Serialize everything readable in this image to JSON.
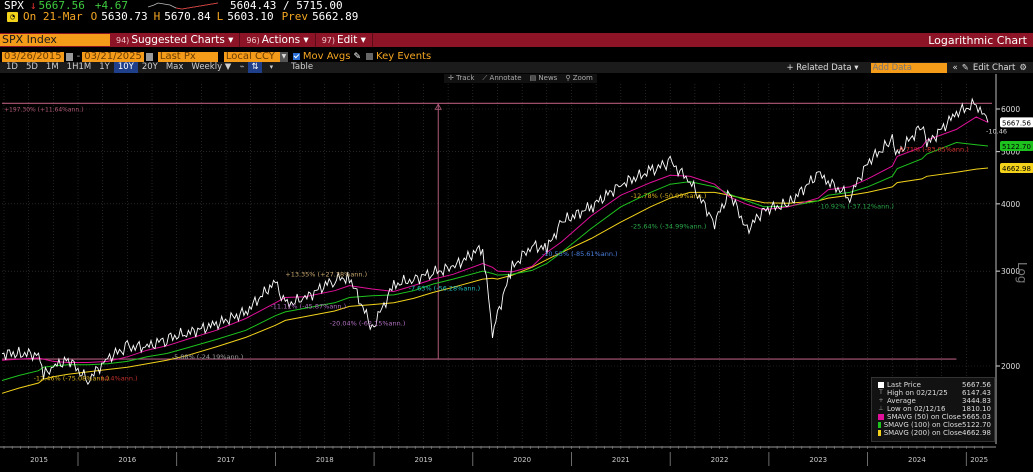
{
  "quote": {
    "ticker": "SPX",
    "direction_arrow": "↓",
    "last": "5667.56",
    "change": "+4.67",
    "range_low": "5604.43",
    "range_sep": " / ",
    "range_high": "5715.00",
    "date_label": "On 21-Mar",
    "open_label": "O",
    "open": "5630.73",
    "high_label": "H",
    "high": "5670.84",
    "low_label": "L",
    "low": "5603.10",
    "prev_label": "Prev",
    "prev": "5662.89",
    "gauge_icon": "gauge-icon"
  },
  "menubar": {
    "security": "SPX Index",
    "items": [
      {
        "num": "94)",
        "label": "Suggested Charts ▾"
      },
      {
        "num": "96)",
        "label": "Actions ▾"
      },
      {
        "num": "97)",
        "label": "Edit ▾"
      }
    ],
    "chart_type": "Logarithmic Chart"
  },
  "settings": {
    "start_date": "03/26/2015",
    "end_date": "03/21/2025",
    "date_sep": "-",
    "field": "Last Px",
    "currency": "Local CCY",
    "mov_avgs_label": "Mov Avgs",
    "mov_avgs_checked": true,
    "key_events_label": "Key Events",
    "key_events_checked": false
  },
  "periods": {
    "items": [
      "1D",
      "5D",
      "1M",
      "1H1M",
      "1Y",
      "10Y",
      "20Y",
      "Max"
    ],
    "active": "10Y",
    "frequency": "Weekly ▼",
    "table_label": "Table",
    "related_data": "+ Related Data ▾",
    "add_data_placeholder": "Add Data",
    "collapse": "«",
    "edit_chart": "Edit Chart",
    "settings_icon": "gear-icon"
  },
  "chart_tools": [
    "✛ Track",
    "⟋ Annotate",
    "▤ News",
    "⚲ Zoom"
  ],
  "axis_side_label": "Log",
  "chart_data": {
    "type": "line",
    "title": "SPX Index — Logarithmic Chart",
    "scale": "log",
    "xlabel": "",
    "ylabel": "Log",
    "ylim": [
      1750,
      6600
    ],
    "x_ticks": [
      "2015",
      "2016",
      "2017",
      "2018",
      "2019",
      "2020",
      "2021",
      "2022",
      "2023",
      "2024",
      "2025"
    ],
    "y_ticks": [
      2000,
      3000,
      4000,
      5000,
      6000
    ],
    "grid": true,
    "legend_position": "bottom-right",
    "x": [
      2015.23,
      2015.4,
      2015.6,
      2015.65,
      2015.75,
      2015.9,
      2016.1,
      2016.3,
      2016.5,
      2016.7,
      2016.9,
      2017.1,
      2017.4,
      2017.7,
      2018.0,
      2018.1,
      2018.3,
      2018.6,
      2018.75,
      2018.98,
      2019.2,
      2019.4,
      2019.6,
      2019.8,
      2020.1,
      2020.2,
      2020.25,
      2020.4,
      2020.6,
      2020.75,
      2020.9,
      2021.2,
      2021.5,
      2021.8,
      2022.0,
      2022.2,
      2022.45,
      2022.6,
      2022.78,
      2022.95,
      2023.2,
      2023.5,
      2023.6,
      2023.82,
      2024.0,
      2024.25,
      2024.3,
      2024.55,
      2024.6,
      2024.9,
      2025.1,
      2025.22
    ],
    "series": [
      {
        "name": "Last Price",
        "color": "#ffffff",
        "values": [
          2108,
          2110,
          2100,
          1920,
          1990,
          2060,
          1880,
          2070,
          2170,
          2170,
          2250,
          2300,
          2390,
          2520,
          2870,
          2600,
          2670,
          2900,
          2920,
          2350,
          2830,
          2900,
          2980,
          3050,
          3330,
          2300,
          2500,
          3050,
          3350,
          3300,
          3700,
          3950,
          4350,
          4600,
          4790,
          4400,
          3700,
          4200,
          3580,
          3900,
          4000,
          4550,
          4400,
          4120,
          4780,
          5250,
          4950,
          5600,
          5150,
          5900,
          6140,
          5667.56
        ]
      },
      {
        "name": "SMAVG (50) on Close",
        "color": "#e0109a",
        "values": [
          2050,
          2060,
          2070,
          2060,
          2040,
          2030,
          2030,
          2040,
          2080,
          2140,
          2180,
          2240,
          2330,
          2450,
          2620,
          2680,
          2690,
          2760,
          2820,
          2780,
          2750,
          2820,
          2900,
          2960,
          3100,
          3050,
          3000,
          2990,
          3060,
          3250,
          3400,
          3800,
          4150,
          4380,
          4520,
          4500,
          4350,
          4120,
          3990,
          3900,
          3950,
          4100,
          4250,
          4300,
          4450,
          4700,
          4900,
          5100,
          5250,
          5500,
          5800,
          5665.03
        ]
      },
      {
        "name": "SMAVG (100) on Close",
        "color": "#1ec21e",
        "values": [
          1880,
          1920,
          1960,
          1990,
          2000,
          2010,
          2010,
          2020,
          2040,
          2080,
          2110,
          2160,
          2240,
          2330,
          2480,
          2520,
          2560,
          2620,
          2680,
          2700,
          2710,
          2760,
          2840,
          2900,
          3000,
          2970,
          2950,
          2960,
          3010,
          3100,
          3250,
          3600,
          3950,
          4200,
          4350,
          4400,
          4300,
          4170,
          4050,
          3950,
          3960,
          4050,
          4150,
          4200,
          4300,
          4500,
          4650,
          4850,
          4950,
          5200,
          5150,
          5122.7
        ]
      },
      {
        "name": "SMAVG (200) on Close",
        "color": "#f2d21b",
        "values": [
          1780,
          1820,
          1860,
          1890,
          1910,
          1930,
          1950,
          1970,
          1990,
          2020,
          2050,
          2090,
          2170,
          2260,
          2380,
          2430,
          2470,
          2530,
          2580,
          2600,
          2620,
          2670,
          2740,
          2800,
          2900,
          2910,
          2900,
          2950,
          3050,
          3150,
          3250,
          3450,
          3700,
          3950,
          4100,
          4200,
          4200,
          4150,
          4080,
          4020,
          4010,
          4050,
          4100,
          4150,
          4200,
          4300,
          4380,
          4450,
          4500,
          4580,
          4640,
          4662.98
        ]
      }
    ],
    "reference_lines": [
      {
        "label": "+197.30% (+11.64%ann.)",
        "value": 6147.43,
        "color": "#b05a7a"
      },
      {
        "label": "",
        "value": 2060,
        "color": "#b05a7a"
      }
    ],
    "annotations": [
      {
        "text": "-12.46% (-75.08%ann.)",
        "color": "#d8b020",
        "x": 2015.55,
        "y": 1880
      },
      {
        "text": "-14.4%ann.)",
        "color": "#c0302a",
        "x": 2016.2,
        "y": 1880
      },
      {
        "text": "-5.88% (-24.19%ann.)",
        "color": "#a0a0a0",
        "x": 2016.95,
        "y": 2060
      },
      {
        "text": "+13.35% (+27.38%ann.)",
        "color": "#c8a870",
        "x": 2018.1,
        "y": 2930
      },
      {
        "text": "-11.11% (-45.87%ann.)",
        "color": "#b070c0",
        "x": 2017.95,
        "y": 2560
      },
      {
        "text": "-20.04% (-62.15%ann.)",
        "color": "#b070c0",
        "x": 2018.55,
        "y": 2380
      },
      {
        "text": "-7.63% (-56.28%ann.)",
        "color": "#20c0c0",
        "x": 2019.35,
        "y": 2760
      },
      {
        "text": "-10.55% (-85.61%ann.)",
        "color": "#4a80e0",
        "x": 2020.7,
        "y": 3200
      },
      {
        "text": "-12.78% (-50.99%ann.)",
        "color": "#d8b020",
        "x": 2021.6,
        "y": 4100
      },
      {
        "text": "-25.64% (-34.99%ann.)",
        "color": "#2aa84a",
        "x": 2021.6,
        "y": 3600
      },
      {
        "text": "-10.92% (-37.12%ann.)",
        "color": "#2aa84a",
        "x": 2023.5,
        "y": 3920
      },
      {
        "text": "-9.71% (-83.05%ann.)",
        "color": "#e03030",
        "x": 2024.3,
        "y": 5000
      },
      {
        "text": "-10.46",
        "color": "#dddddd",
        "x": 2025.2,
        "y": 5400
      }
    ],
    "axis_badges": [
      {
        "text": "5667.56",
        "value": 5667.56,
        "bg": "#ffffff",
        "fg": "#000000"
      },
      {
        "text": "5122.70",
        "value": 5122.7,
        "bg": "#1ec21e",
        "fg": "#000000"
      },
      {
        "text": "4662.98",
        "value": 4662.98,
        "bg": "#f2d21b",
        "fg": "#000000"
      }
    ],
    "legend": [
      {
        "label": "Last Price",
        "value": "5667.56",
        "swatch": "#ffffff",
        "glyph": ""
      },
      {
        "label": "High on 02/21/25",
        "value": "6147.43",
        "swatch": "",
        "glyph": "T"
      },
      {
        "label": "Average",
        "value": "3444.83",
        "swatch": "",
        "glyph": "+"
      },
      {
        "label": "Low on 02/12/16",
        "value": "1810.10",
        "swatch": "",
        "glyph": "⊥"
      },
      {
        "label": "SMAVG (50)  on Close",
        "value": "5665.03",
        "swatch": "#e0109a",
        "glyph": ""
      },
      {
        "label": "SMAVG (100)  on Close",
        "value": "5122.70",
        "swatch": "#1ec21e",
        "glyph": ""
      },
      {
        "label": "SMAVG (200)  on Close",
        "value": "4662.98",
        "swatch": "#f2d21b",
        "glyph": ""
      }
    ]
  }
}
